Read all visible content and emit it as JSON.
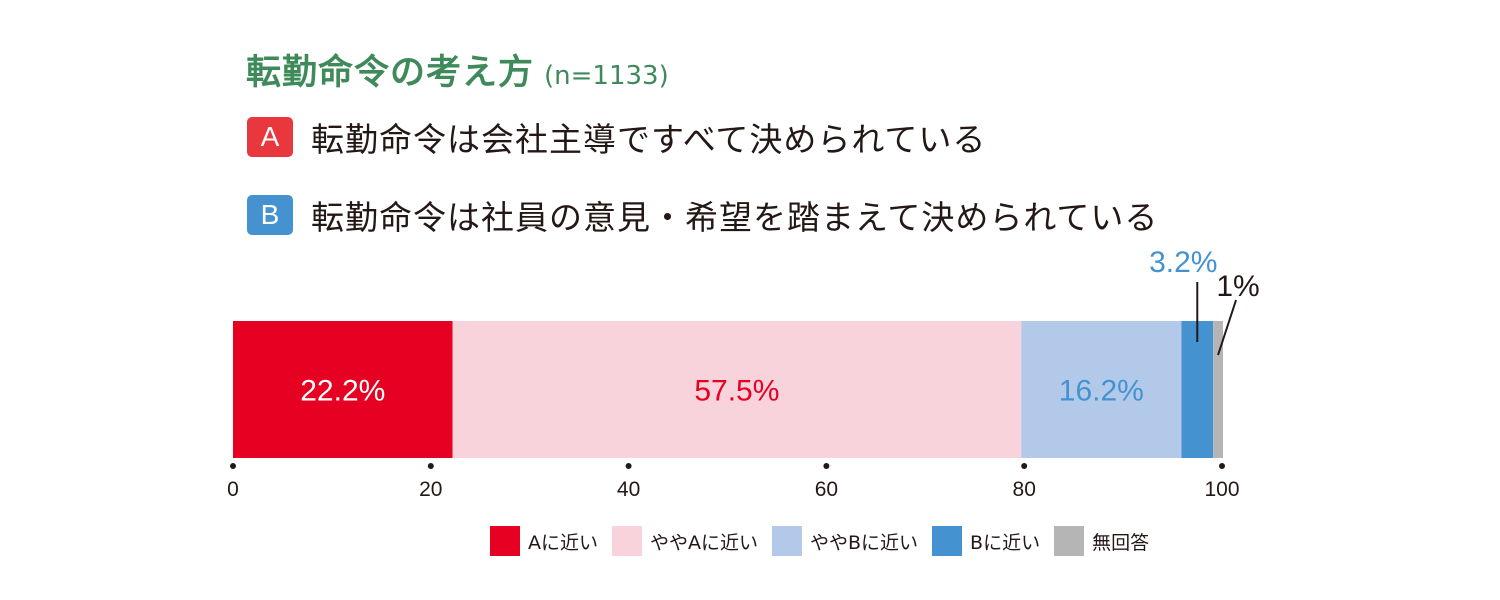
{
  "header": {
    "title": "転勤命令の考え方",
    "n_label": "(n=1133)"
  },
  "options": [
    {
      "badge": "A",
      "text": "転勤命令は会社主導ですべて決められている",
      "color": "#e8383d"
    },
    {
      "badge": "B",
      "text": "転勤命令は社員の意見・希望を踏まえて決められている",
      "color": "#4592d0"
    }
  ],
  "chart_data": {
    "type": "bar",
    "orientation": "horizontal-stacked",
    "xlim": [
      0,
      100
    ],
    "x_ticks": [
      "0",
      "20",
      "40",
      "60",
      "80",
      "100"
    ],
    "series": [
      {
        "name": "Aに近い",
        "value": 22.2,
        "label": "22.2%",
        "color": "#e60021",
        "label_color": "#ffffff",
        "label_position": "inside"
      },
      {
        "name": "ややAに近い",
        "value": 57.5,
        "label": "57.5%",
        "color": "#f9d3dc",
        "label_color": "#e60021",
        "label_position": "inside"
      },
      {
        "name": "ややBに近い",
        "value": 16.2,
        "label": "16.2%",
        "color": "#b3c9ea",
        "label_color": "#4592d0",
        "label_position": "inside"
      },
      {
        "name": "Bに近い",
        "value": 3.2,
        "label": "3.2%",
        "color": "#4592d0",
        "label_color": "#4592d0",
        "label_position": "callout-above"
      },
      {
        "name": "無回答",
        "value": 1,
        "label": "1%",
        "color": "#b5b5b6",
        "label_color": "#231815",
        "label_position": "callout-right"
      }
    ],
    "legend_position": "bottom-right"
  }
}
